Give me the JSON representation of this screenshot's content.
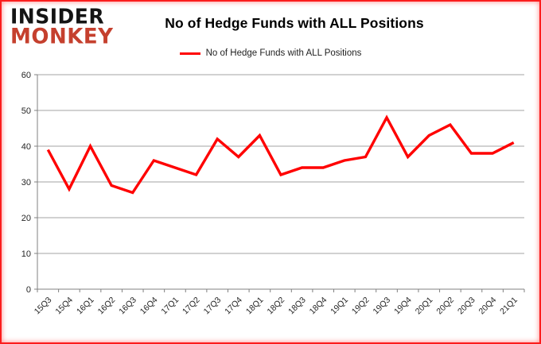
{
  "page": {
    "background": "#ffffff",
    "border_color": "#fb1d1d"
  },
  "logo": {
    "line1": "INSIDER",
    "line2": "MONKEY",
    "line1_color": "#141414",
    "line2_color": "#c5402e"
  },
  "header": {
    "title": "No of Hedge Funds with ALL Positions"
  },
  "legend": {
    "label": "No of Hedge Funds with ALL Positions",
    "line_color": "#ff0000"
  },
  "chart_data": {
    "type": "line",
    "title": "No of Hedge Funds with ALL Positions",
    "categories": [
      "15Q3",
      "15Q4",
      "16Q1",
      "16Q2",
      "16Q3",
      "16Q4",
      "17Q1",
      "17Q2",
      "17Q3",
      "17Q4",
      "18Q1",
      "18Q2",
      "18Q3",
      "18Q4",
      "19Q1",
      "19Q2",
      "19Q3",
      "19Q4",
      "20Q1",
      "20Q2",
      "20Q3",
      "20Q4",
      "21Q1"
    ],
    "series": [
      {
        "name": "No of Hedge Funds with ALL Positions",
        "color": "#ff0000",
        "values": [
          39,
          28,
          40,
          29,
          27,
          36,
          34,
          32,
          42,
          37,
          43,
          32,
          34,
          34,
          36,
          37,
          48,
          37,
          43,
          46,
          38,
          38,
          41
        ]
      }
    ],
    "xlabel": "",
    "ylabel": "",
    "ylim": [
      0,
      60
    ],
    "ytick_step": 10,
    "yticks": [
      0,
      10,
      20,
      30,
      40,
      50,
      60
    ],
    "grid": true,
    "legend_position": "top-center",
    "axis_color": "#808080",
    "grid_color": "#a3a3a3",
    "tick_label_color": "#262626",
    "line_width": 3.4
  }
}
